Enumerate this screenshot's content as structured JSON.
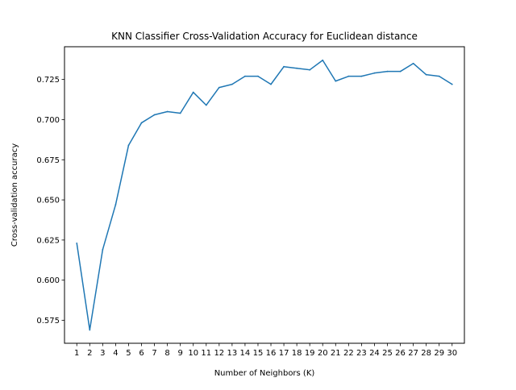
{
  "chart_data": {
    "type": "line",
    "title": "KNN Classifier Cross-Validation Accuracy for Euclidean distance",
    "xlabel": "Number of Neighbors (K)",
    "ylabel": "Cross-validation accuracy",
    "x": [
      1,
      2,
      3,
      4,
      5,
      6,
      7,
      8,
      9,
      10,
      11,
      12,
      13,
      14,
      15,
      16,
      17,
      18,
      19,
      20,
      21,
      22,
      23,
      24,
      25,
      26,
      27,
      28,
      29,
      30
    ],
    "series": [
      {
        "values": [
          0.623,
          0.569,
          0.619,
          0.647,
          0.684,
          0.698,
          0.703,
          0.705,
          0.704,
          0.717,
          0.709,
          0.72,
          0.722,
          0.727,
          0.727,
          0.722,
          0.733,
          0.732,
          0.731,
          0.737,
          0.724,
          0.727,
          0.727,
          0.729,
          0.73,
          0.73,
          0.735,
          0.728,
          0.727,
          0.722
        ],
        "color": "#1f77b4"
      }
    ],
    "xlim": [
      0.05,
      30.95
    ],
    "ylim": [
      0.5607,
      0.7454
    ],
    "xticks": [
      "1",
      "2",
      "3",
      "4",
      "5",
      "6",
      "7",
      "8",
      "9",
      "10",
      "11",
      "12",
      "13",
      "14",
      "15",
      "16",
      "17",
      "18",
      "19",
      "20",
      "21",
      "22",
      "23",
      "24",
      "25",
      "26",
      "27",
      "28",
      "29",
      "30"
    ],
    "yticks": [
      "0.575",
      "0.600",
      "0.625",
      "0.650",
      "0.675",
      "0.700",
      "0.725"
    ],
    "grid": false,
    "legend": "none"
  }
}
